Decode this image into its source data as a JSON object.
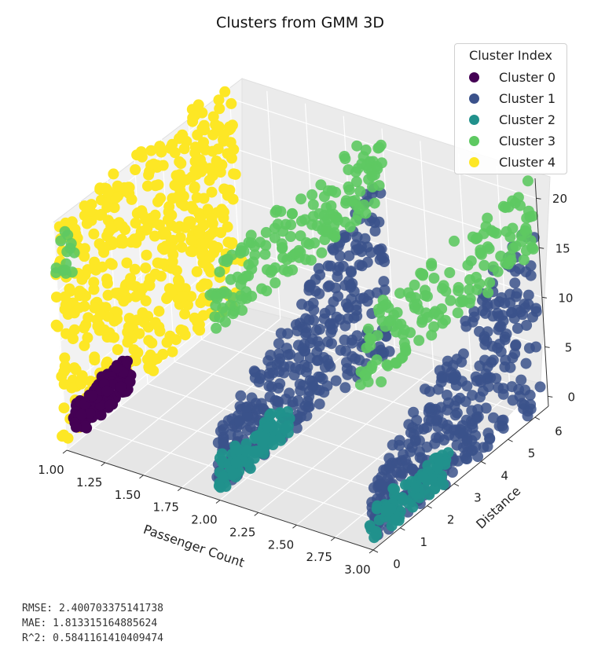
{
  "chart_data": {
    "type": "scatter",
    "subtype": "3d",
    "title": "Clusters from GMM 3D",
    "xlabel": "Passenger Count",
    "ylabel": "Distance",
    "zlabel": "",
    "xticks": [
      "1.00",
      "1.25",
      "1.50",
      "1.75",
      "2.00",
      "2.25",
      "2.50",
      "2.75",
      "3.00"
    ],
    "yticks": [
      "0",
      "1",
      "2",
      "3",
      "4",
      "5",
      "6"
    ],
    "zticks": [
      "0",
      "5",
      "10",
      "15",
      "20"
    ],
    "xlim": [
      1.0,
      3.0
    ],
    "ylim": [
      0,
      6.5
    ],
    "zlim": [
      -1,
      22
    ],
    "legend_title": "Cluster Index",
    "legend_location": "top-right",
    "series": [
      {
        "name": "Cluster 0",
        "color": "#440154",
        "groups": [
          {
            "x": 1,
            "y_range": [
              0.4,
              2.4
            ],
            "z_range": [
              0,
              3
            ]
          }
        ]
      },
      {
        "name": "Cluster 1",
        "color": "#3b528b",
        "groups": [
          {
            "x": 2,
            "y_range": [
              0.0,
              6.3
            ],
            "z_range": [
              0,
              19
            ]
          },
          {
            "x": 3,
            "y_range": [
              0.0,
              6.3
            ],
            "z_range": [
              0,
              19
            ]
          }
        ]
      },
      {
        "name": "Cluster 2",
        "color": "#21918c",
        "groups": [
          {
            "x": 2,
            "y_range": [
              0.0,
              2.6
            ],
            "z_range": [
              0,
              3
            ]
          },
          {
            "x": 3,
            "y_range": [
              0.0,
              2.8
            ],
            "z_range": [
              0,
              3
            ]
          }
        ]
      },
      {
        "name": "Cluster 3",
        "color": "#5ec962",
        "groups": [
          {
            "x": 2,
            "y_range": [
              0.0,
              6.4
            ],
            "z_range": [
              15,
              22
            ]
          },
          {
            "x": 3,
            "y_range": [
              0.0,
              6.4
            ],
            "z_range": [
              15,
              22
            ]
          },
          {
            "x": 1,
            "y_range": [
              0.0,
              0.6
            ],
            "z_range": [
              16,
              20
            ]
          }
        ]
      },
      {
        "name": "Cluster 4",
        "color": "#fde725",
        "groups": [
          {
            "x": 1,
            "y_range": [
              0.0,
              6.5
            ],
            "z_range": [
              0,
              22
            ]
          }
        ]
      }
    ]
  },
  "metrics": {
    "rmse": "RMSE: 2.400703375141738",
    "mae": "MAE: 1.813315164885624",
    "r2": "R^2: 0.5841161410409474"
  }
}
